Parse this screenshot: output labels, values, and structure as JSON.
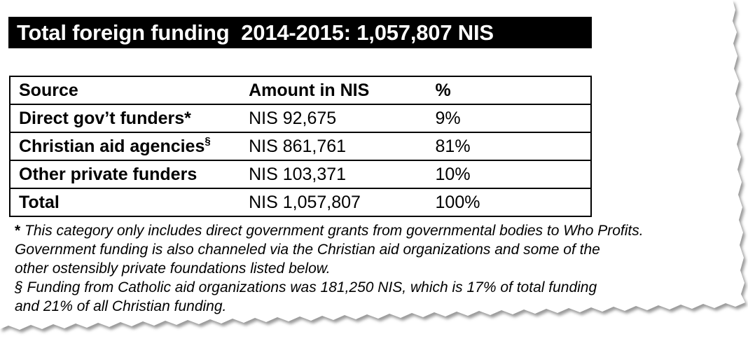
{
  "title": "Total foreign funding  2014-2015: 1,057,807 NIS",
  "table": {
    "headers": [
      "Source",
      "Amount in NIS",
      "%"
    ],
    "rows": [
      {
        "source": "Direct gov’t funders*",
        "mark": "",
        "amount": "NIS 92,675",
        "percent": "9%"
      },
      {
        "source": "Christian aid agencies",
        "mark": "§",
        "amount": "NIS 861,761",
        "percent": "81%"
      },
      {
        "source": "Other private funders",
        "mark": "",
        "amount": "NIS 103,371",
        "percent": "10%"
      },
      {
        "source": "Total",
        "mark": "",
        "amount": "NIS 1,057,807",
        "percent": "100%"
      }
    ]
  },
  "notes": {
    "star_symbol": "*",
    "star_line1": " This category only includes direct government grants from governmental bodies to Who Profits.",
    "star_line2": "Government funding is also channeled via the Christian aid organizations and some of the",
    "star_line3": "other ostensibly private foundations listed below.",
    "section_line1": "§ Funding from Catholic aid organizations was 181,250 NIS, which is 17% of total funding",
    "section_line2": "and 21% of all Christian funding."
  }
}
